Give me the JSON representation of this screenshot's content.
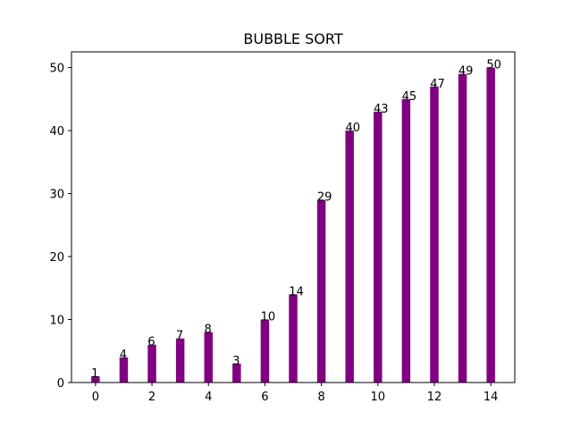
{
  "chart_data": {
    "type": "bar",
    "title": "BUBBLE SORT",
    "xlabel": "",
    "ylabel": "",
    "x": [
      0,
      1,
      2,
      3,
      4,
      5,
      6,
      7,
      8,
      9,
      10,
      11,
      12,
      13,
      14
    ],
    "values": [
      1,
      4,
      6,
      7,
      8,
      3,
      10,
      14,
      29,
      40,
      43,
      45,
      47,
      49,
      50
    ],
    "data_labels": [
      "1",
      "4",
      "6",
      "7",
      "8",
      "3",
      "10",
      "14",
      "29",
      "40",
      "43",
      "45",
      "47",
      "49",
      "50"
    ],
    "xlim": [
      -0.85,
      14.85
    ],
    "ylim": [
      0,
      52.5
    ],
    "x_ticks": [
      0,
      2,
      4,
      6,
      8,
      10,
      12,
      14
    ],
    "x_tick_labels": [
      "0",
      "2",
      "4",
      "6",
      "8",
      "10",
      "12",
      "14"
    ],
    "y_ticks": [
      0,
      10,
      20,
      30,
      40,
      50
    ],
    "y_tick_labels": [
      "0",
      "10",
      "20",
      "30",
      "40",
      "50"
    ],
    "bar_color": "#800080",
    "grid": false,
    "legend": "none"
  }
}
